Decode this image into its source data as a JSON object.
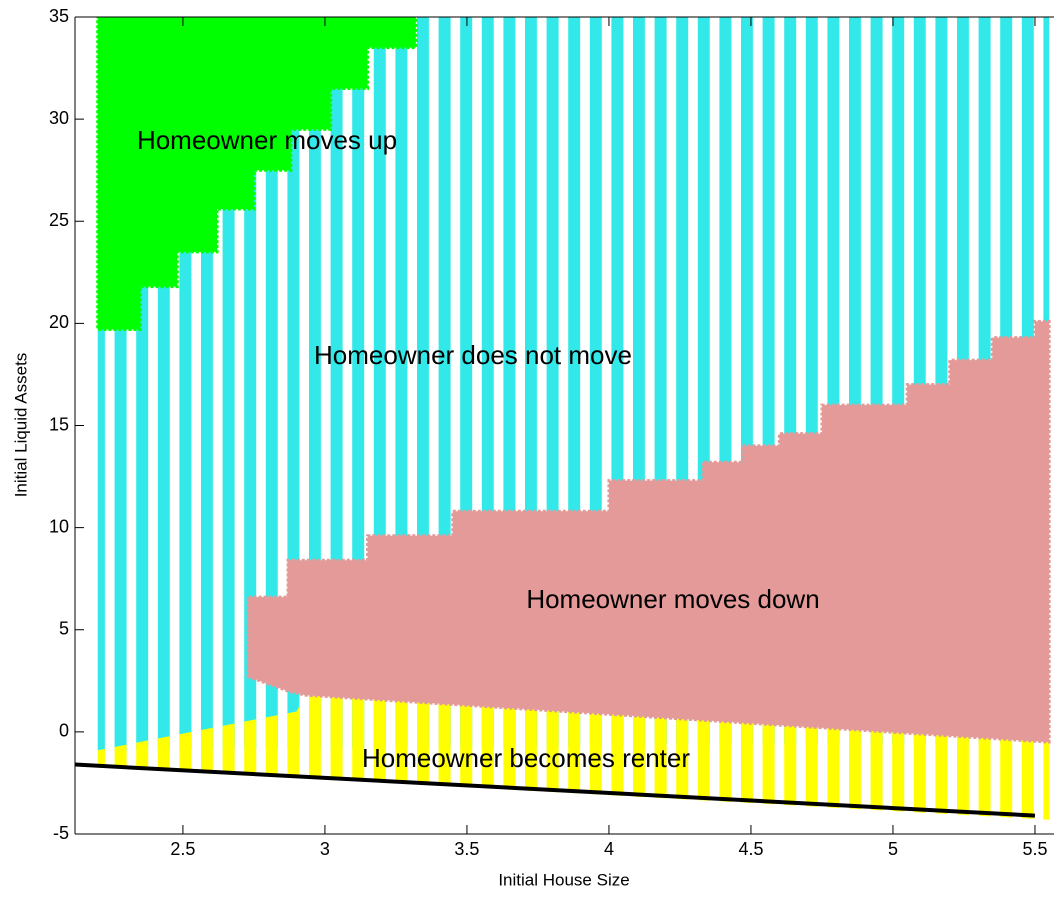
{
  "chart_data": {
    "type": "region",
    "x_label": "Initial House Size",
    "y_label": "Initial Liquid Assets",
    "xlim": [
      2.12,
      5.567
    ],
    "ylim": [
      -5,
      35
    ],
    "xticks": [
      2.5,
      3,
      3.5,
      4,
      4.5,
      5,
      5.5
    ],
    "yticks": [
      -5,
      0,
      5,
      10,
      15,
      20,
      25,
      30,
      35
    ],
    "grid": false,
    "series": [
      {
        "name": "Homeowner does not move",
        "color": "#33e8e8",
        "pattern": "stripes",
        "x": [
          2.2,
          5.55,
          5.55,
          2.2
        ],
        "y": [
          35,
          35,
          -0.5,
          -0.9
        ]
      },
      {
        "name": "Homeowner becomes renter",
        "color": "#ffff00",
        "pattern": "stripes",
        "x": [
          2.2,
          2.9,
          2.93,
          5.55,
          5.55,
          2.2
        ],
        "y": [
          -0.9,
          1.0,
          1.8,
          -0.5,
          -4.3,
          -1.7
        ]
      },
      {
        "name": "Homeowner moves down",
        "color": "#e39a99",
        "pattern": "solid",
        "x": [
          2.73,
          2.73,
          2.87,
          2.87,
          3.15,
          3.15,
          3.45,
          3.45,
          4.0,
          4.0,
          4.33,
          4.33,
          4.47,
          4.47,
          4.6,
          4.6,
          4.75,
          4.75,
          5.05,
          5.05,
          5.2,
          5.2,
          5.35,
          5.35,
          5.5,
          5.5,
          5.55,
          5.55,
          2.93,
          2.87,
          2.73
        ],
        "y": [
          2.7,
          6.6,
          6.6,
          8.4,
          8.4,
          9.6,
          9.6,
          10.8,
          10.8,
          12.3,
          12.3,
          13.2,
          13.2,
          14.0,
          14.0,
          14.6,
          14.6,
          16.0,
          16.0,
          17.0,
          17.0,
          18.2,
          18.2,
          19.3,
          19.3,
          20.1,
          20.1,
          -0.5,
          1.8,
          2.0,
          2.7
        ]
      },
      {
        "name": "Homeowner moves up",
        "color": "#00ff00",
        "pattern": "solid",
        "x": [
          2.2,
          3.32,
          3.32,
          3.15,
          3.15,
          3.02,
          3.02,
          2.88,
          2.88,
          2.75,
          2.75,
          2.62,
          2.62,
          2.48,
          2.48,
          2.35,
          2.35,
          2.2
        ],
        "y": [
          35,
          35,
          33.5,
          33.5,
          31.5,
          31.5,
          29.5,
          29.5,
          27.5,
          27.5,
          25.6,
          25.6,
          23.5,
          23.5,
          21.8,
          21.8,
          19.7,
          19.7
        ]
      },
      {
        "color": "#000000",
        "pattern": "line",
        "x": [
          2.12,
          5.5
        ],
        "y": [
          -1.6,
          -4.1
        ]
      }
    ]
  }
}
